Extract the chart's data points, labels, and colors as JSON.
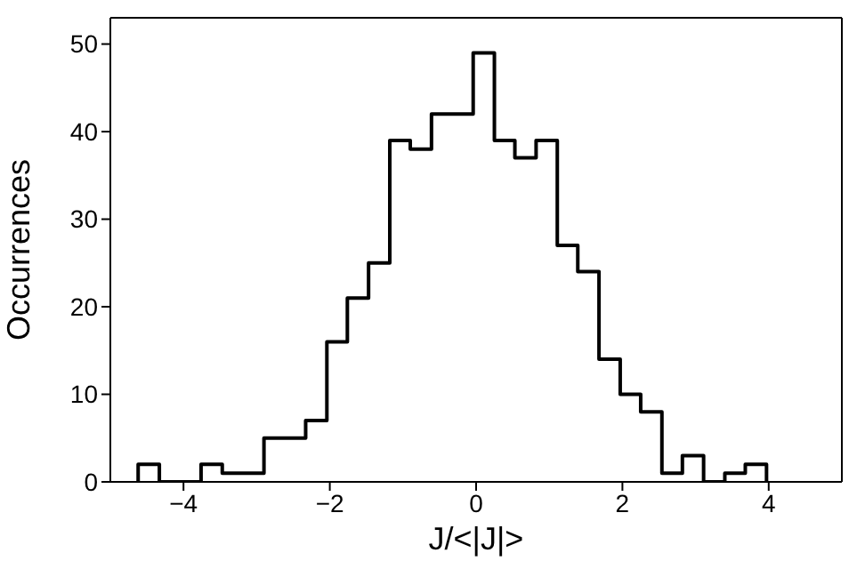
{
  "chart_data": {
    "type": "histogram",
    "xlabel": "J/<|J|>",
    "ylabel": "Occurrences",
    "color": "#000000",
    "bins": [
      -4.62,
      -4.33,
      -4.05,
      -3.76,
      -3.47,
      -3.19,
      -2.9,
      -2.62,
      -2.33,
      -2.04,
      -1.76,
      -1.47,
      -1.18,
      -0.9,
      -0.61,
      -0.33,
      -0.04,
      0.25,
      0.53,
      0.82,
      1.11,
      1.39,
      1.68,
      1.97,
      2.25,
      2.54,
      2.82,
      3.11,
      3.4,
      3.68,
      3.97
    ],
    "values": [
      2,
      0,
      0,
      2,
      1,
      1,
      5,
      5,
      7,
      16,
      21,
      25,
      39,
      38,
      42,
      42,
      49,
      39,
      37,
      39,
      27,
      24,
      14,
      10,
      8,
      1,
      3,
      0,
      1,
      2
    ],
    "xlim": [
      -5,
      5
    ],
    "xticks": [
      {
        "value": -4,
        "label": "−4"
      },
      {
        "value": -2,
        "label": "−2"
      },
      0,
      2,
      4
    ],
    "ylim": [
      0,
      53
    ],
    "yticks": [
      0,
      10,
      20,
      30,
      40,
      50
    ],
    "grid": false
  }
}
